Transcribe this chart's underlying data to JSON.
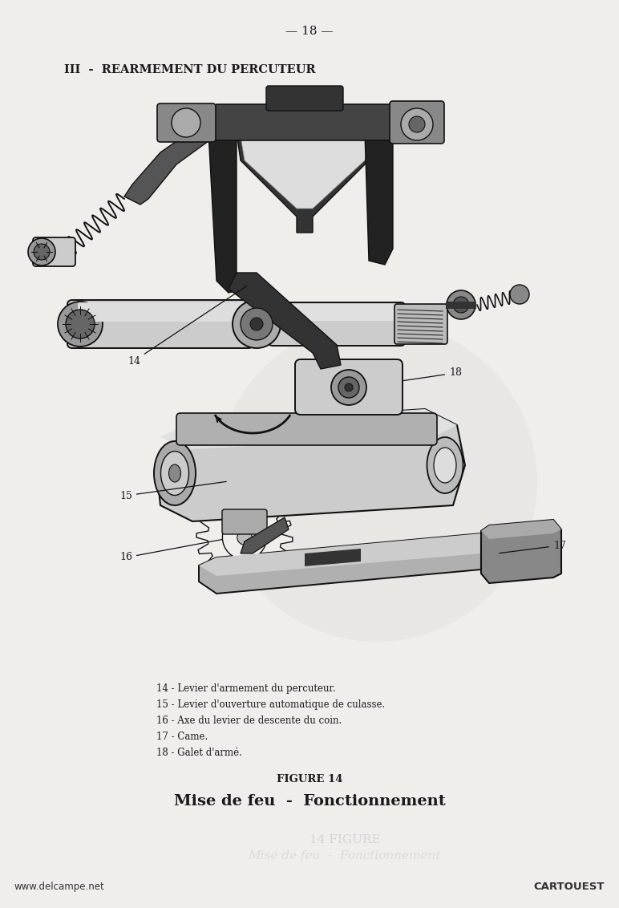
{
  "page_number": "— 18 —",
  "section_title": "III  -  REARMEMENT DU PERCUTEUR",
  "figure_label": "FIGURE 14",
  "figure_title": "Mise de feu  -  Fonctionnement",
  "legend_items": [
    "14 - Levier d'armement du percuteur.",
    "15 - Levier d'ouverture automatique de culasse.",
    "16 - Axe du levier de descente du coin.",
    "17 - Came.",
    "18 - Galet d'armé."
  ],
  "footer_left": "www.delcampe.net",
  "footer_right": "CARTOUEST",
  "bg_color": "#f0eeea",
  "text_color": "#1a1a1a"
}
